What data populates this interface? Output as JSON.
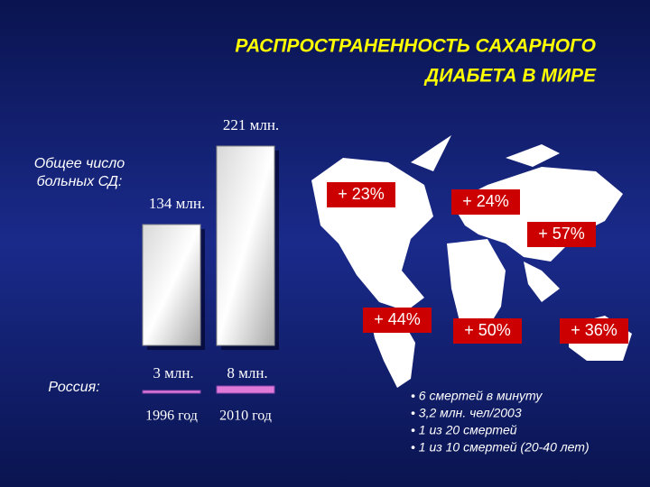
{
  "chart_data": {
    "type": "bar",
    "title": [
      "РАСПРОСТРАНЕННОСТЬ САХАРНОГО",
      "ДИАБЕТА В МИРЕ"
    ],
    "ylabel": [
      "Общее число",
      "больных СД:"
    ],
    "categories": [
      "1996 год",
      "2010 год"
    ],
    "values": [
      134,
      221
    ],
    "value_labels": [
      "134 млн.",
      "221 млн."
    ],
    "russia": {
      "label": "Россия:",
      "values": [
        3,
        8
      ],
      "value_labels": [
        "3 млн.",
        "8 млн."
      ],
      "color": "#e07ad8"
    },
    "region_growth": [
      "+ 23%",
      "+ 24%",
      "+ 57%",
      "+ 44%",
      "+ 50%",
      "+ 36%"
    ],
    "notes": [
      "• 6 смертей в минуту",
      "• 3,2 млн. чел/2003",
      "• 1 из 20 смертей",
      "• 1 из 10 смертей (20-40 лет)"
    ]
  }
}
